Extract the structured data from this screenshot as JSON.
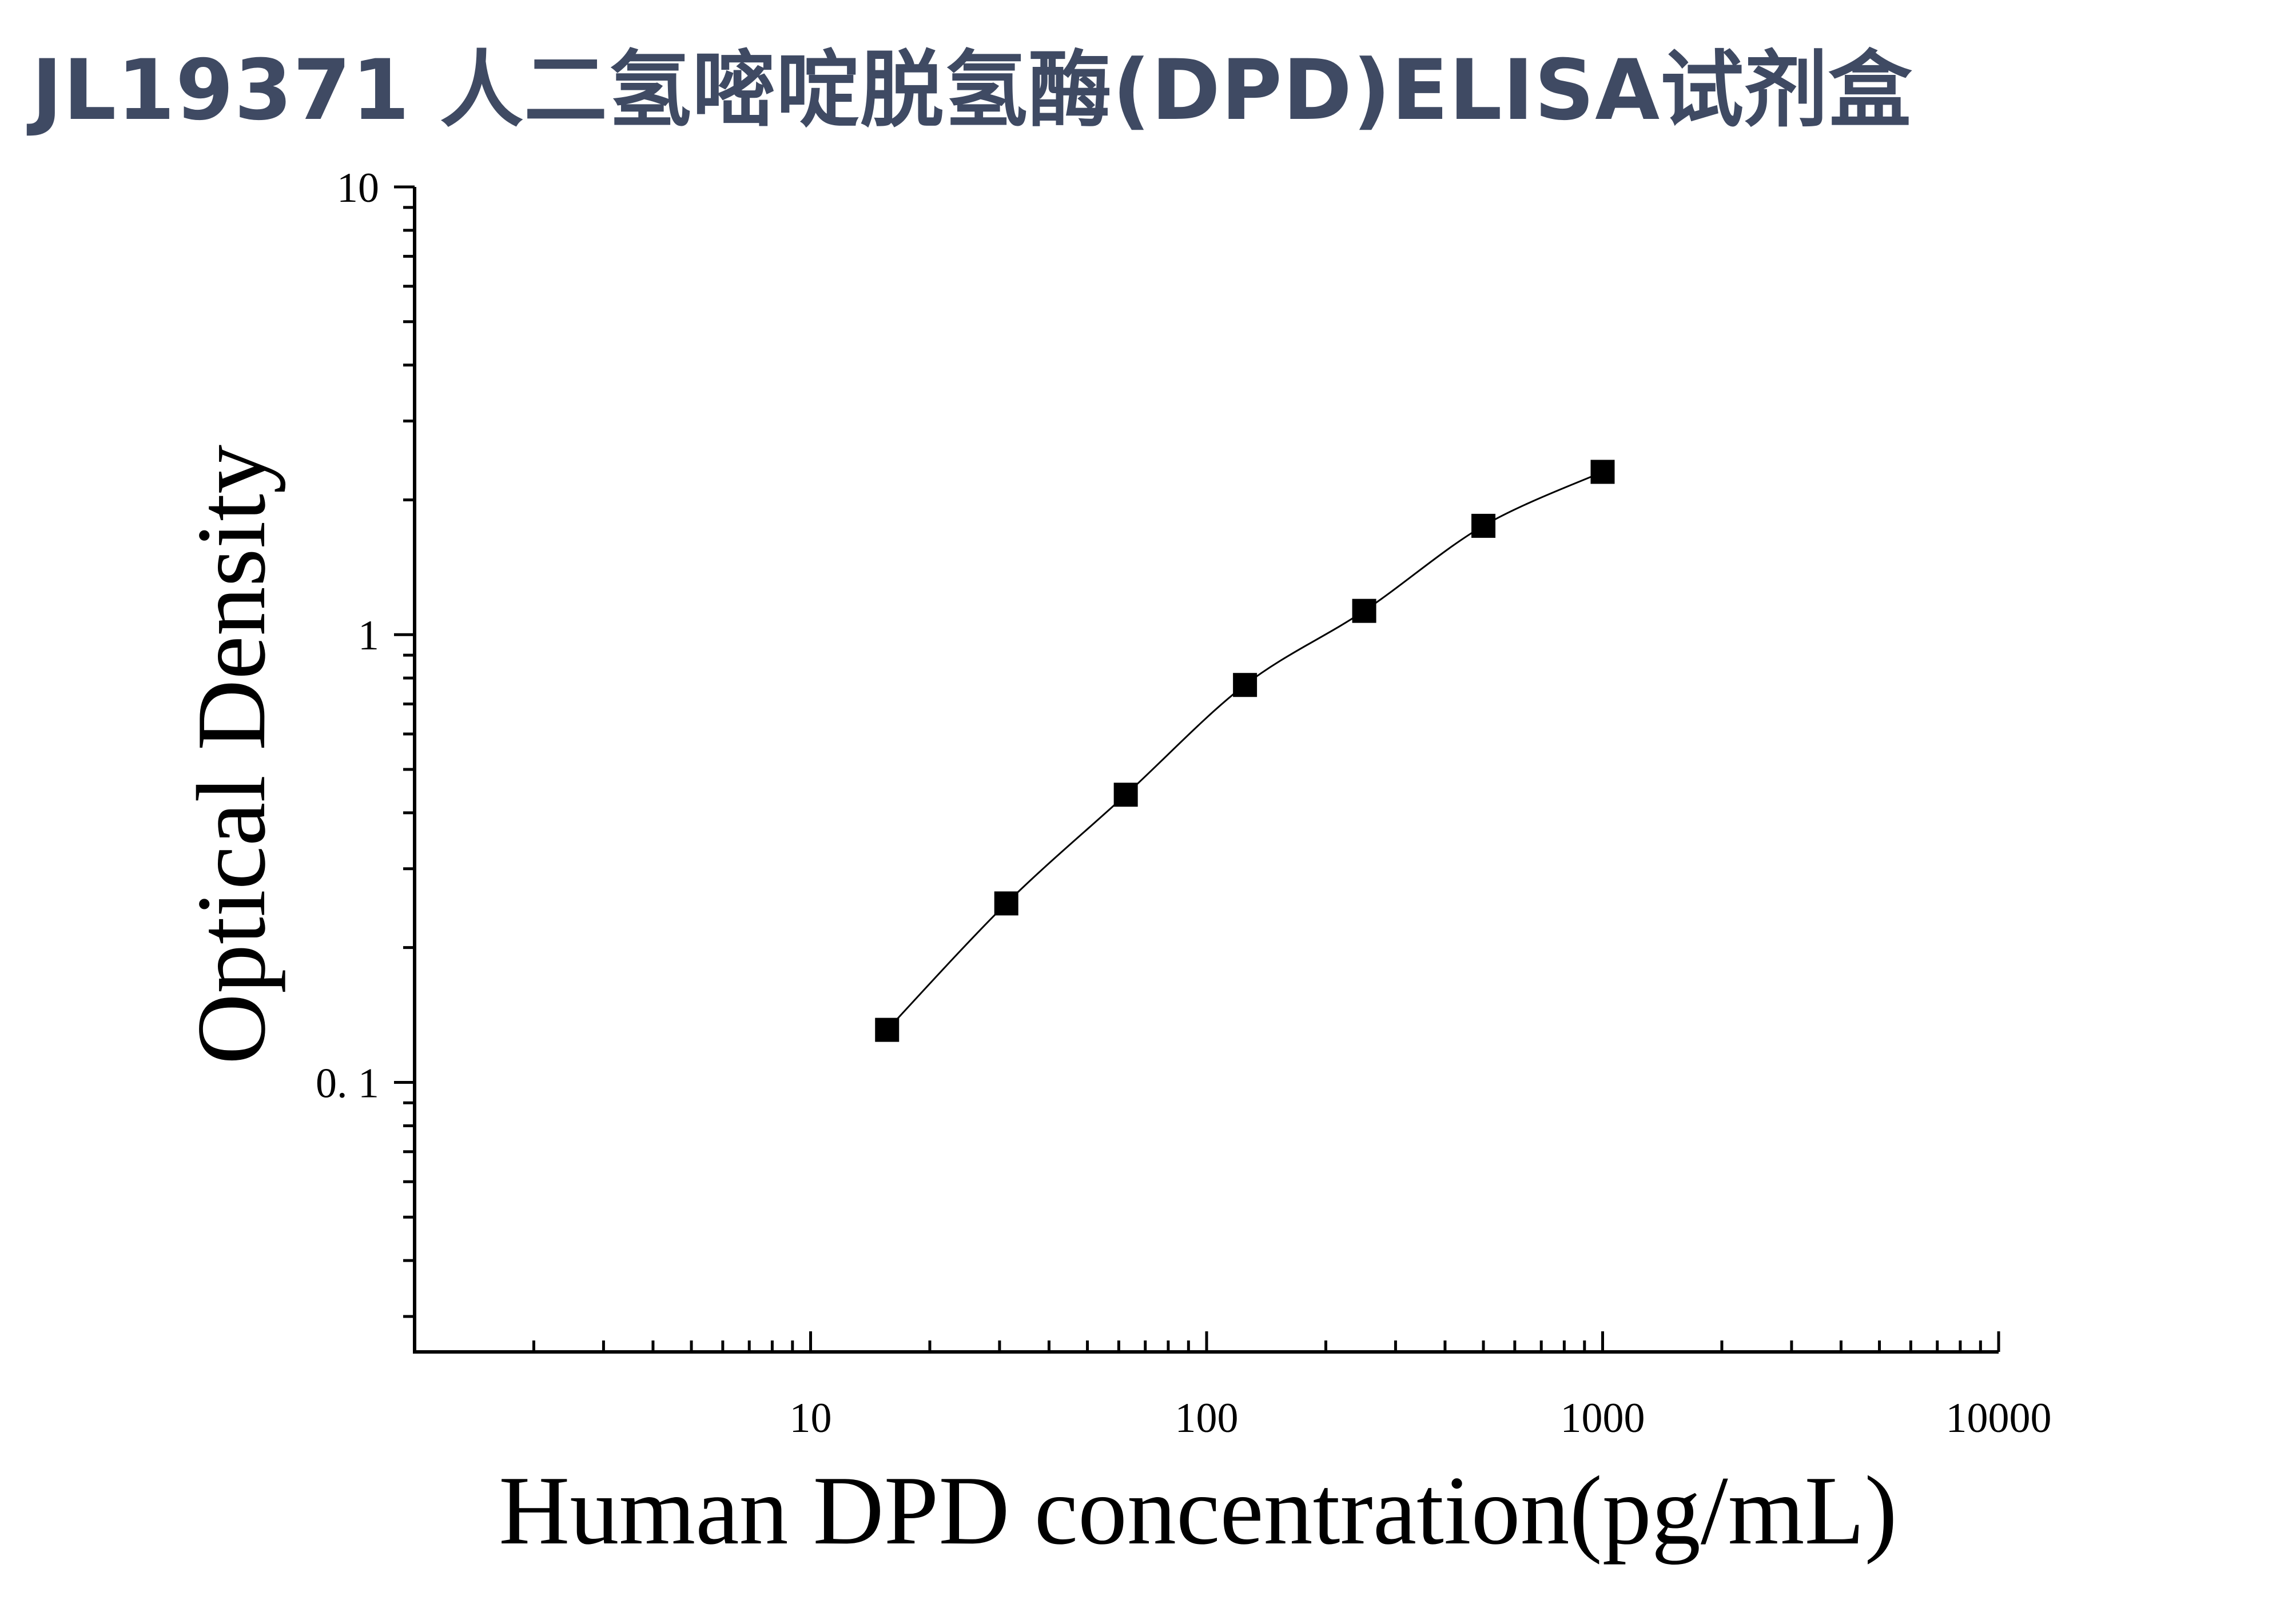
{
  "title": "JL19371 人二氢嘧啶脱氢酶(DPD)ELISA试剂盒",
  "chart_data": {
    "type": "scatter",
    "title": "JL19371 人二氢嘧啶脱氢酶(DPD)ELISA试剂盒",
    "xlabel": "Human DPD concentration(pg/mL)",
    "ylabel": "Optical Density",
    "x_scale": "log",
    "y_scale": "log",
    "xlim": [
      1,
      10000
    ],
    "ylim": [
      0.025,
      10
    ],
    "x_ticks": [
      10,
      100,
      1000,
      10000
    ],
    "x_tick_labels": [
      "10",
      "100",
      "1000",
      "10000"
    ],
    "y_ticks": [
      0.1,
      1,
      10
    ],
    "y_tick_labels": [
      "0. 1",
      "1",
      "10"
    ],
    "grid": false,
    "fit_curve": true,
    "marker": "square",
    "color": "#000000",
    "series": [
      {
        "x": [
          15.6,
          31.2,
          62.5,
          125,
          250,
          500,
          1000
        ],
        "y": [
          0.131,
          0.251,
          0.439,
          0.772,
          1.13,
          1.75,
          2.31
        ]
      }
    ]
  }
}
